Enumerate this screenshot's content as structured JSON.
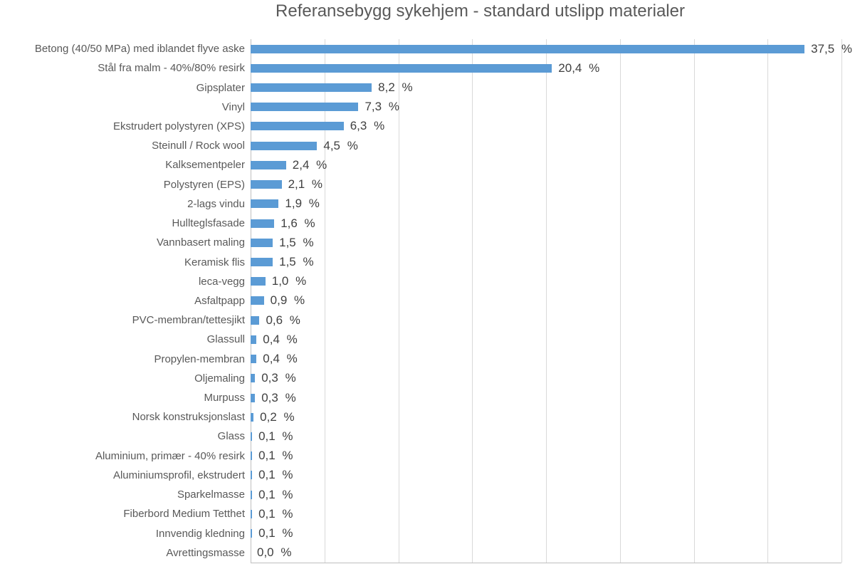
{
  "title": "Referansebygg sykehjem - standard utslipp materialer",
  "chart_data": {
    "type": "bar",
    "orientation": "horizontal",
    "title": "Referansebygg sykehjem - standard utslipp materialer",
    "categories": [
      "Betong (40/50 MPa) med iblandet flyve aske",
      "Stål fra malm - 40%/80% resirk",
      "Gipsplater",
      "Vinyl",
      "Ekstrudert polystyren (XPS)",
      "Steinull / Rock wool",
      "Kalksementpeler",
      "Polystyren (EPS)",
      "2-lags vindu",
      "Hullteglsfasade",
      "Vannbasert maling",
      "Keramisk flis",
      "leca-vegg",
      "Asfaltpapp",
      "PVC-membran/tettesjikt",
      "Glassull",
      "Propylen-membran",
      "Oljemaling",
      "Murpuss",
      "Norsk konstruksjonslast",
      "Glass",
      "Aluminium, primær - 40% resirk",
      "Aluminiumsprofil, ekstrudert",
      "Sparkelmasse",
      "Fiberbord Medium Tetthet",
      "Innvendig kledning",
      "Avrettingsmasse"
    ],
    "values": [
      37.5,
      20.4,
      8.2,
      7.3,
      6.3,
      4.5,
      2.4,
      2.1,
      1.9,
      1.6,
      1.5,
      1.5,
      1.0,
      0.9,
      0.6,
      0.4,
      0.4,
      0.3,
      0.3,
      0.2,
      0.1,
      0.1,
      0.1,
      0.1,
      0.1,
      0.1,
      0.0
    ],
    "value_labels": [
      "37,5 %",
      "20,4 %",
      "8,2 %",
      "7,3 %",
      "6,3 %",
      "4,5 %",
      "2,4 %",
      "2,1 %",
      "1,9 %",
      "1,6 %",
      "1,5 %",
      "1,5 %",
      "1,0 %",
      "0,9 %",
      "0,6 %",
      "0,4 %",
      "0,4 %",
      "0,3 %",
      "0,3 %",
      "0,2 %",
      "0,1 %",
      "0,1 %",
      "0,1 %",
      "0,1 %",
      "0,1 %",
      "0,1 %",
      "0,0 %"
    ],
    "xlabel": "",
    "ylabel": "",
    "xlim": [
      0,
      40
    ],
    "xticks_percent": [
      0,
      5,
      10,
      15,
      20,
      25,
      30,
      35,
      40
    ],
    "grid": "vertical gridlines on, no tick labels",
    "legend": "none",
    "data_labels": "outside end, comma decimal, percent",
    "colors": {
      "bar": "#5B9BD5",
      "gridline": "#D9D9D9",
      "axis_line": "#BFBFBF",
      "title_text": "#595959",
      "category_text": "#595959",
      "value_text": "#404040",
      "background": "#FFFFFF"
    }
  }
}
